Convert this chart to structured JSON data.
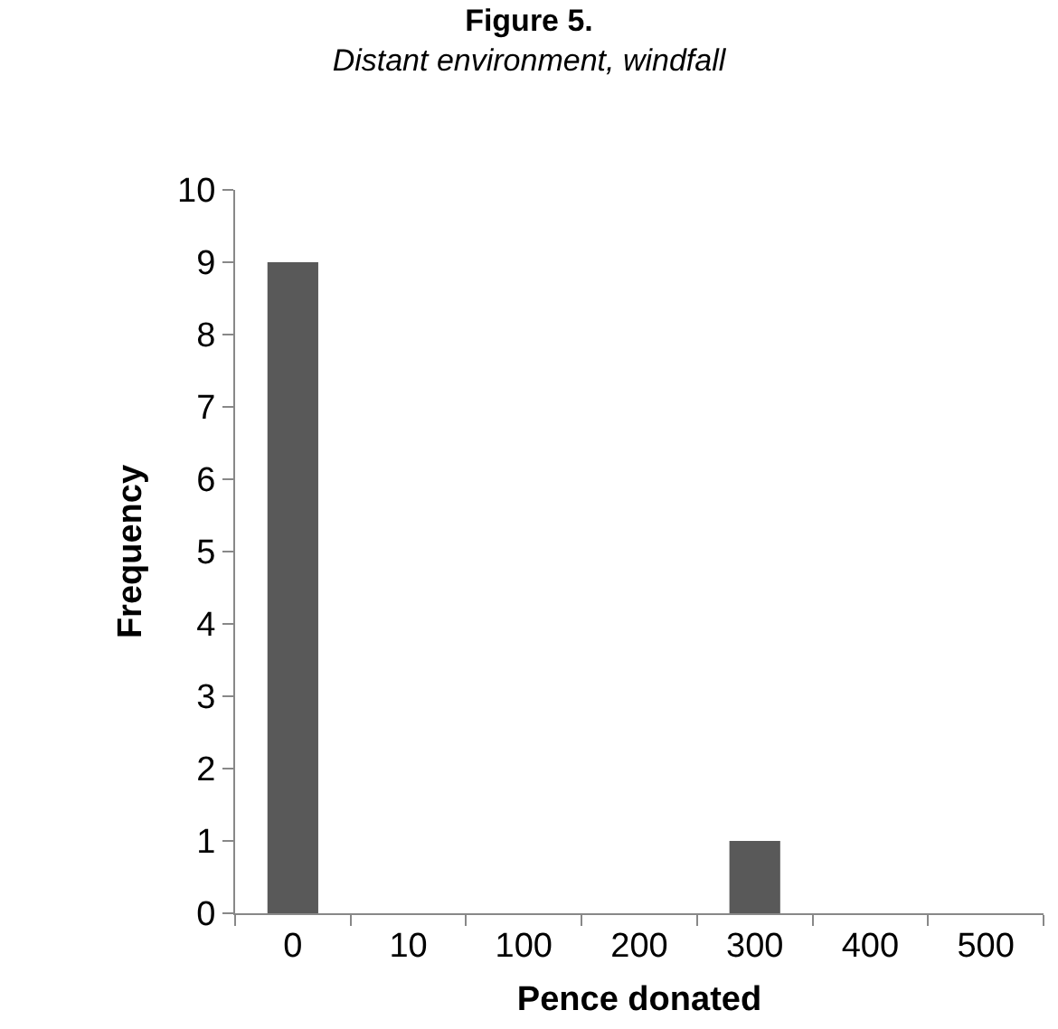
{
  "chart_data": {
    "type": "bar",
    "title": "Figure 5.",
    "subtitle": "Distant environment, windfall",
    "xlabel": "Pence donated",
    "ylabel": "Frequency",
    "categories": [
      "0",
      "10",
      "100",
      "200",
      "300",
      "400",
      "500"
    ],
    "values": [
      9,
      0,
      0,
      0,
      1,
      0,
      0
    ],
    "color": "#595959",
    "ylim": [
      0,
      10
    ],
    "yticks": [
      0,
      1,
      2,
      3,
      4,
      5,
      6,
      7,
      8,
      9,
      10
    ],
    "grid": false
  }
}
